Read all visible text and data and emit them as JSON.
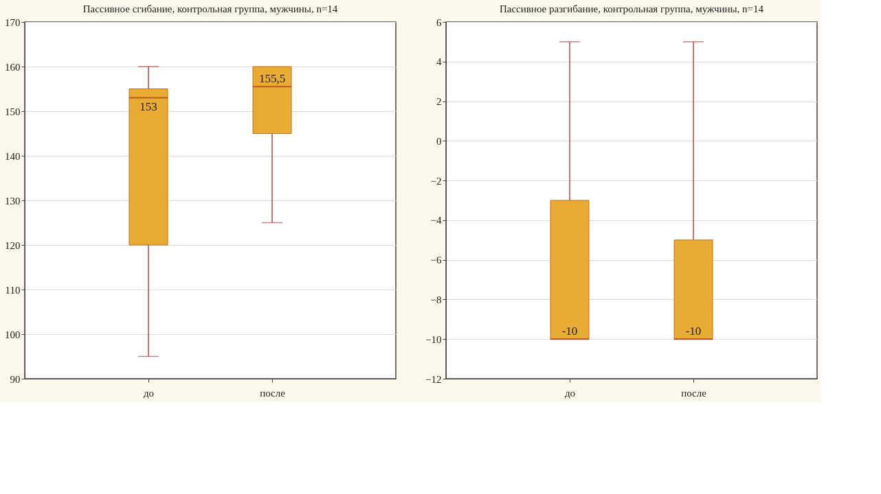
{
  "chart_data": [
    {
      "type": "box",
      "title": "Пассивное сгибание, контрольная группа, мужчины, n=14",
      "categories": [
        "до",
        "после"
      ],
      "series": [
        {
          "color": "#e9ab34",
          "boxes": [
            {
              "low": 95,
              "q1": 120,
              "median": 153,
              "q3": 155,
              "high": 160
            },
            {
              "low": 125,
              "q1": 145,
              "median": 155.5,
              "q3": 160,
              "high": 160
            }
          ]
        }
      ],
      "ylim": [
        90,
        170
      ],
      "yticks": [
        90,
        100,
        110,
        120,
        130,
        140,
        150,
        160,
        170
      ],
      "grid": "y",
      "annotations": [
        {
          "text": "153",
          "x": "до",
          "y": 153
        },
        {
          "text": "155,5",
          "x": "после",
          "y": 155.5
        }
      ]
    },
    {
      "type": "box",
      "title": "Пассивное разгибание, контрольная группа, мужчины, n=14",
      "categories": [
        "до",
        "после"
      ],
      "series": [
        {
          "color": "#e9ab34",
          "boxes": [
            {
              "low": -10,
              "q1": -10,
              "median": -10,
              "q3": -3,
              "high": 5
            },
            {
              "low": -10,
              "q1": -10,
              "median": -10,
              "q3": -5,
              "high": 5
            }
          ]
        }
      ],
      "ylim": [
        -12,
        6
      ],
      "yticks": [
        -12,
        -10,
        -8,
        -6,
        -4,
        -2,
        0,
        2,
        4,
        6
      ],
      "grid": "y",
      "annotations": [
        {
          "text": "-10",
          "x": "до",
          "y": -10
        },
        {
          "text": "-10",
          "x": "после",
          "y": -10
        }
      ]
    }
  ]
}
